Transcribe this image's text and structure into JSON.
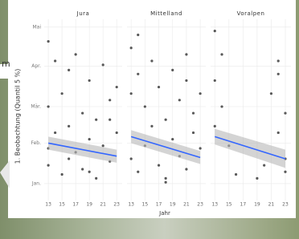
{
  "overlay_fragment": "m",
  "chart_data": {
    "type": "scatter",
    "y_label": "1. Beobachtung (Quantil 5 %)",
    "x_label": "Jahr",
    "ylim": [
      -12,
      127
    ],
    "yticks": [
      {
        "value": 1,
        "label": "Jan."
      },
      {
        "value": 32,
        "label": "Feb."
      },
      {
        "value": 60,
        "label": "Mär."
      },
      {
        "value": 91,
        "label": "Apr."
      },
      {
        "value": 121,
        "label": "Mai"
      }
    ],
    "xlim": [
      12.4,
      23.8
    ],
    "xticks": [
      13,
      15,
      17,
      19,
      21,
      23
    ],
    "grid": true,
    "point_color": "#222222",
    "line_color": "#3366ff",
    "band_color": "#b8b8b8",
    "panels": [
      {
        "title": "Jura",
        "x": [
          13,
          13,
          13,
          14,
          14,
          15,
          15,
          16,
          16,
          17,
          17,
          18,
          18,
          19,
          19,
          20,
          20,
          21,
          21,
          22,
          22,
          23,
          23,
          13,
          16,
          19,
          22
        ],
        "y": [
          110,
          60,
          15,
          95,
          40,
          70,
          8,
          45,
          88,
          25,
          100,
          55,
          12,
          80,
          35,
          50,
          5,
          92,
          30,
          65,
          18,
          75,
          40,
          28,
          20,
          10,
          50
        ],
        "trend": {
          "x": [
            13,
            23
          ],
          "y": [
            32,
            22
          ],
          "lower": [
            27,
            17
          ],
          "upper": [
            37,
            27
          ]
        }
      },
      {
        "title": "Mittelland",
        "x": [
          13,
          13,
          13,
          14,
          14,
          15,
          15,
          16,
          16,
          17,
          17,
          18,
          18,
          19,
          19,
          20,
          20,
          21,
          21,
          22,
          22,
          23,
          23,
          14,
          18,
          21
        ],
        "y": [
          105,
          70,
          20,
          85,
          10,
          60,
          30,
          95,
          45,
          15,
          75,
          50,
          5,
          88,
          35,
          65,
          22,
          80,
          12,
          55,
          40,
          70,
          28,
          115,
          2,
          100
        ],
        "trend": {
          "x": [
            13,
            23
          ],
          "y": [
            37,
            21
          ],
          "lower": [
            32,
            16
          ],
          "upper": [
            42,
            26
          ]
        }
      },
      {
        "title": "Voralpen",
        "x": [
          13,
          13,
          13,
          14,
          15,
          16,
          19,
          20,
          21,
          22,
          22,
          23,
          23,
          23,
          22,
          14
        ],
        "y": [
          118,
          80,
          45,
          60,
          30,
          8,
          5,
          15,
          70,
          85,
          40,
          55,
          20,
          10,
          95,
          100
        ],
        "trend": {
          "x": [
            13,
            23
          ],
          "y": [
            37,
            20
          ],
          "lower": [
            31,
            13
          ],
          "upper": [
            43,
            27
          ]
        }
      }
    ]
  }
}
